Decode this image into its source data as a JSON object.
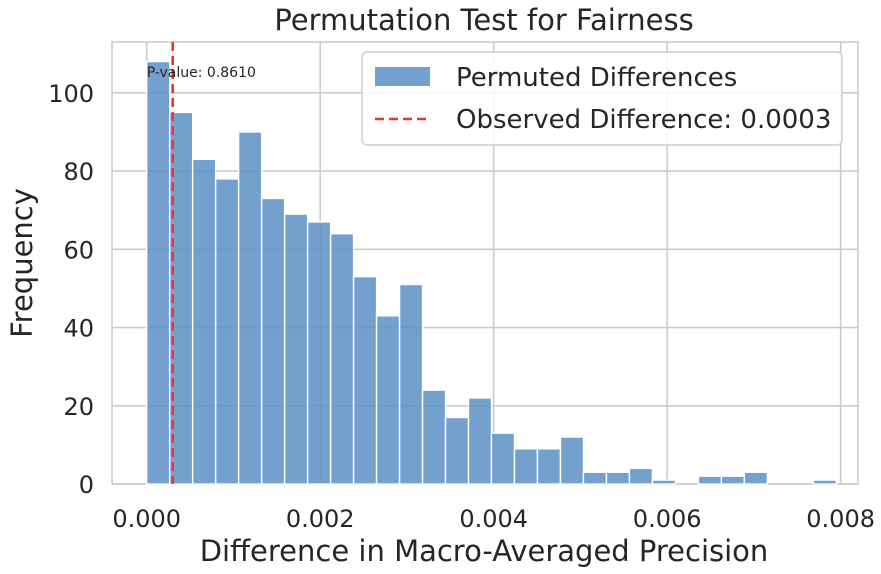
{
  "chart_data": {
    "type": "bar",
    "title": "Permutation Test for Fairness",
    "xlabel": "Difference in Macro-Averaged Precision",
    "ylabel": "Frequency",
    "xlim": [
      -0.0004,
      0.0082
    ],
    "ylim": [
      0,
      113
    ],
    "xticks": [
      0.0,
      0.002,
      0.004,
      0.006,
      0.008
    ],
    "xtick_labels": [
      "0.000",
      "0.002",
      "0.004",
      "0.006",
      "0.008"
    ],
    "yticks": [
      0,
      20,
      40,
      60,
      80,
      100
    ],
    "ytick_labels": [
      "0",
      "20",
      "40",
      "60",
      "80",
      "100"
    ],
    "grid": true,
    "legend_position": "top-right",
    "bin_edges": [
      0.0,
      0.000265,
      0.00053,
      0.000795,
      0.00106,
      0.001325,
      0.00159,
      0.001855,
      0.00212,
      0.002385,
      0.00265,
      0.002915,
      0.00318,
      0.003445,
      0.00371,
      0.003975,
      0.00424,
      0.004505,
      0.00477,
      0.005035,
      0.0053,
      0.005565,
      0.00583,
      0.006095,
      0.00636,
      0.006625,
      0.00689,
      0.007155,
      0.00742,
      0.007685,
      0.00795
    ],
    "series": [
      {
        "name": "Permuted Differences",
        "type": "histogram",
        "color": "#5b8fc3",
        "values": [
          108,
          95,
          83,
          78,
          90,
          73,
          69,
          67,
          64,
          53,
          43,
          51,
          24,
          17,
          22,
          13,
          9,
          9,
          12,
          3,
          3,
          4,
          1,
          0,
          2,
          2,
          3,
          0,
          0,
          1
        ]
      },
      {
        "name": "Observed Difference: 0.0003",
        "type": "vline",
        "color": "#e03a2f",
        "x": 0.0003
      }
    ],
    "annotation": {
      "text": "P-value: 0.8610",
      "x": 0.0,
      "y": 104
    }
  }
}
